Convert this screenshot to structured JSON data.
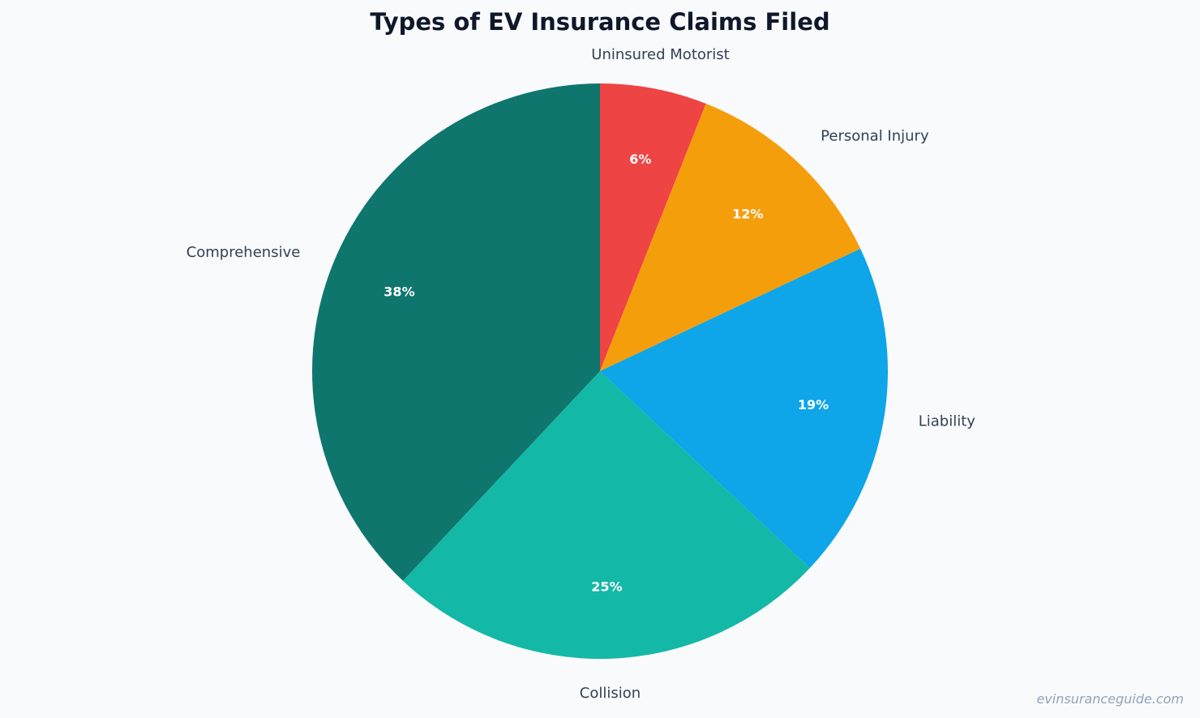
{
  "chart_data": {
    "type": "pie",
    "title": "Types of EV Insurance Claims Filed",
    "categories": [
      "Uninsured Motorist",
      "Personal Injury",
      "Liability",
      "Collision",
      "Comprehensive"
    ],
    "values": [
      6,
      12,
      19,
      25,
      38
    ],
    "value_labels": [
      "6%",
      "12%",
      "19%",
      "25%",
      "38%"
    ],
    "colors": [
      "#ef4444",
      "#f59e0b",
      "#0ea5e9",
      "#14b8a6",
      "#0f766e"
    ],
    "start_angle": "12 o'clock",
    "direction": "clockwise",
    "legend": "none"
  },
  "watermark": "evinsuranceguide.com"
}
